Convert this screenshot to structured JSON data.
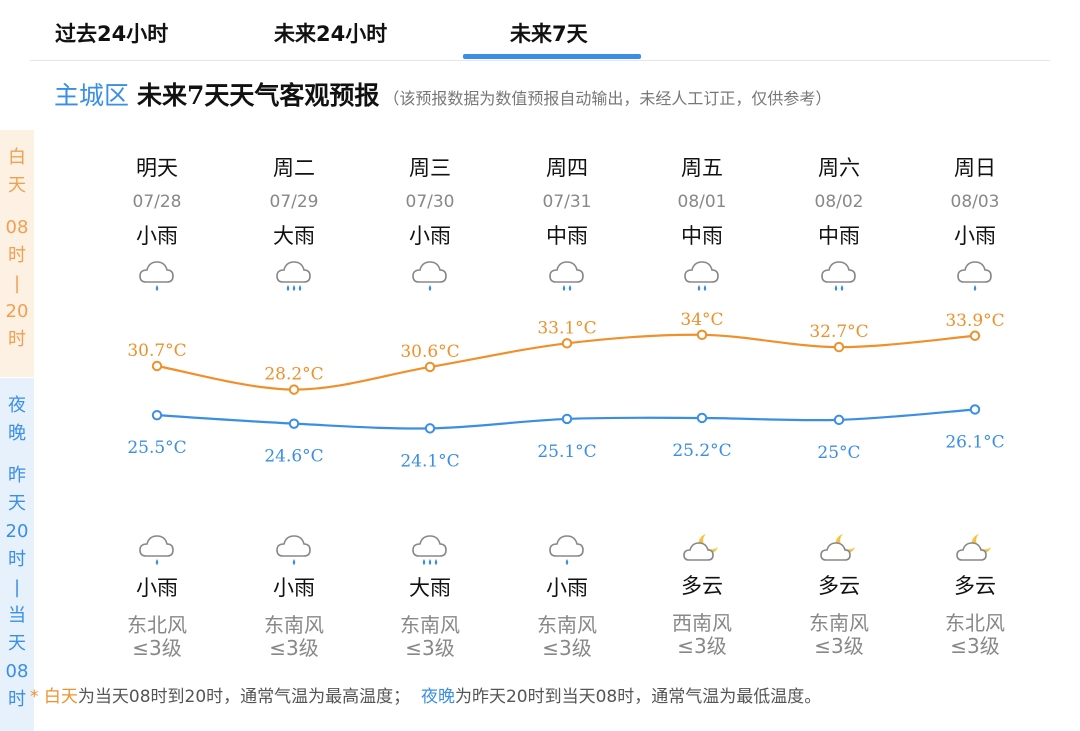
{
  "tabs": [
    {
      "label": "过去24小时"
    },
    {
      "label": "未来24小时"
    },
    {
      "label": "未来7天",
      "active": true
    }
  ],
  "header": {
    "region": "主城区",
    "title": "未来7天天气客观预报",
    "note": "（该预报数据为数值预报自动输出，未经人工订正，仅供参考）"
  },
  "side_labels": {
    "day": [
      "白",
      "天",
      "",
      "08",
      "时",
      "|",
      "20",
      "时"
    ],
    "night": [
      "夜",
      "晚",
      "",
      "昨",
      "天",
      "20",
      "时",
      "|",
      "当",
      "天",
      "08",
      "时"
    ]
  },
  "days": [
    {
      "name": "明天",
      "date": "07/28",
      "day_weather": "小雨",
      "day_icon": "light-rain-icon",
      "night_weather": "小雨",
      "night_icon": "light-rain-icon",
      "wind_dir": "东北风",
      "wind_level": "≤3级"
    },
    {
      "name": "周二",
      "date": "07/29",
      "day_weather": "大雨",
      "day_icon": "heavy-rain-icon",
      "night_weather": "小雨",
      "night_icon": "light-rain-icon",
      "wind_dir": "东南风",
      "wind_level": "≤3级"
    },
    {
      "name": "周三",
      "date": "07/30",
      "day_weather": "小雨",
      "day_icon": "light-rain-icon",
      "night_weather": "大雨",
      "night_icon": "heavy-rain-icon",
      "wind_dir": "东南风",
      "wind_level": "≤3级"
    },
    {
      "name": "周四",
      "date": "07/31",
      "day_weather": "中雨",
      "day_icon": "moderate-rain-icon",
      "night_weather": "小雨",
      "night_icon": "light-rain-icon",
      "wind_dir": "东南风",
      "wind_level": "≤3级"
    },
    {
      "name": "周五",
      "date": "08/01",
      "day_weather": "中雨",
      "day_icon": "moderate-rain-icon",
      "night_weather": "多云",
      "night_icon": "partly-cloudy-night-icon",
      "wind_dir": "西南风",
      "wind_level": "≤3级"
    },
    {
      "name": "周六",
      "date": "08/02",
      "day_weather": "中雨",
      "day_icon": "moderate-rain-icon",
      "night_weather": "多云",
      "night_icon": "partly-cloudy-night-icon",
      "wind_dir": "东南风",
      "wind_level": "≤3级"
    },
    {
      "name": "周日",
      "date": "08/03",
      "day_weather": "小雨",
      "day_icon": "light-rain-icon",
      "night_weather": "多云",
      "night_icon": "partly-cloudy-night-icon",
      "wind_dir": "东北风",
      "wind_level": "≤3级"
    }
  ],
  "chart_data": {
    "type": "line",
    "categories": [
      "07/28",
      "07/29",
      "07/30",
      "07/31",
      "08/01",
      "08/02",
      "08/03"
    ],
    "series": [
      {
        "key": "high",
        "values": [
          30.7,
          28.2,
          30.6,
          33.1,
          34,
          32.7,
          33.9
        ],
        "labels": [
          "30.7°C",
          "28.2°C",
          "30.6°C",
          "33.1°C",
          "34°C",
          "32.7°C",
          "33.9°C"
        ],
        "color": "#f0902a"
      },
      {
        "key": "low",
        "values": [
          25.5,
          24.6,
          24.1,
          25.1,
          25.2,
          25,
          26.1
        ],
        "labels": [
          "25.5°C",
          "24.6°C",
          "24.1°C",
          "25.1°C",
          "25.2°C",
          "25°C",
          "26.1°C"
        ],
        "color": "#3a8ee6"
      }
    ],
    "unit": "°C",
    "grid": false,
    "legend": "none"
  },
  "footnote": {
    "prefix": "* ",
    "day_term": "白天",
    "day_desc": "为当天08时到20时，通常气温为最高温度；",
    "night_term": "夜晚",
    "night_desc": "为昨天20时到当天08时，通常气温为最低温度。"
  },
  "colors": {
    "accent": "#3a8ee6",
    "day": "#f0902a",
    "day_bg": "#fdf1e4",
    "night_bg": "#e6f1fc"
  }
}
